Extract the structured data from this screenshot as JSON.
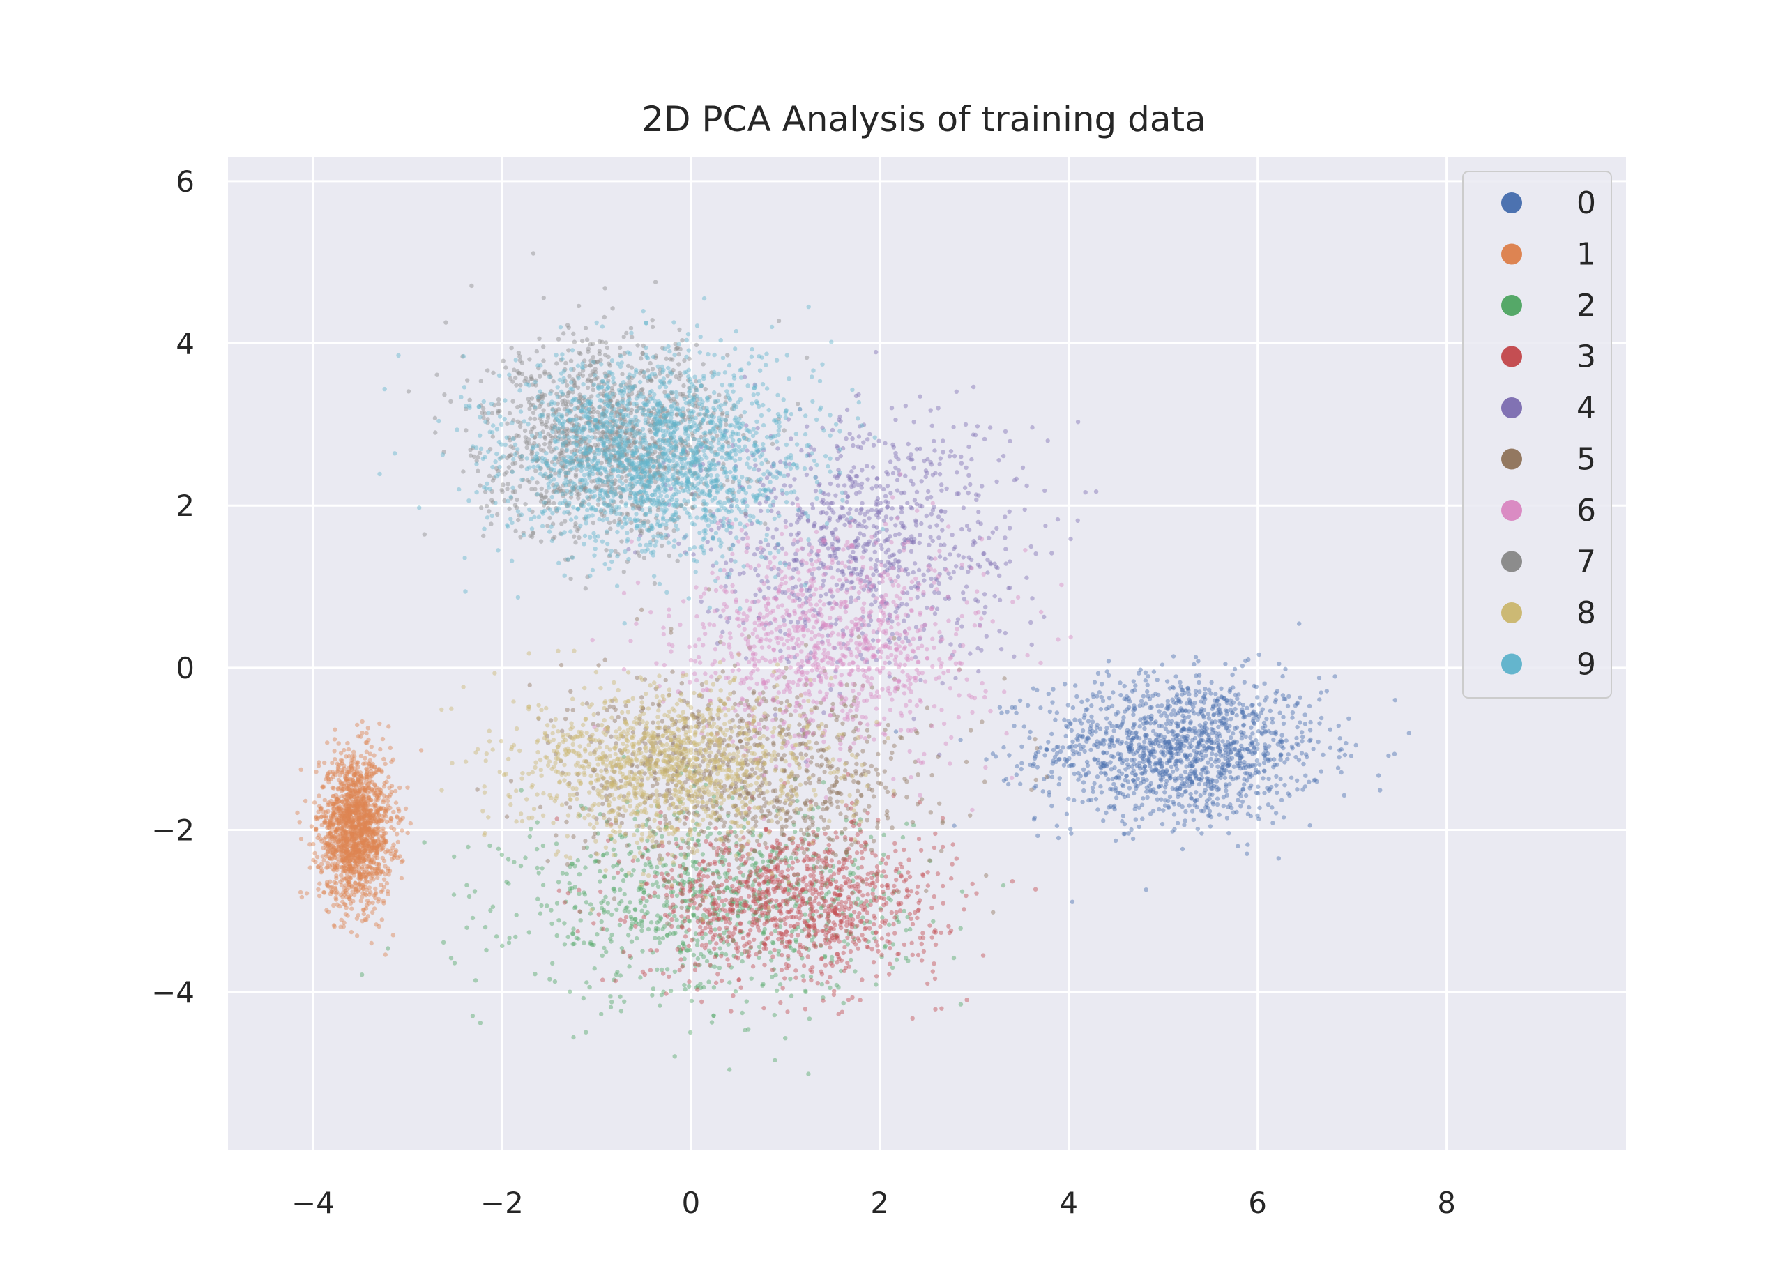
{
  "chart_data": {
    "type": "scatter",
    "title": "2D PCA Analysis of training data",
    "xlabel": "",
    "ylabel": "",
    "xlim": [
      -4.9,
      9.9
    ],
    "ylim": [
      -5.95,
      6.3
    ],
    "x_ticks": [
      -4,
      -2,
      0,
      2,
      4,
      6,
      8
    ],
    "x_tick_labels": [
      "−4",
      "−2",
      "0",
      "2",
      "4",
      "6",
      "8"
    ],
    "y_ticks": [
      -4,
      -2,
      0,
      2,
      4,
      6
    ],
    "y_tick_labels": [
      "−4",
      "−2",
      "0",
      "2",
      "4",
      "6"
    ],
    "grid": true,
    "background": "#eaeaf2",
    "legend_position": "top-right",
    "point_alpha": 0.45,
    "series": [
      {
        "name": "0",
        "color": "#4c72b0",
        "center": [
          5.2,
          -1.0
        ],
        "spread": [
          1.25,
          0.75
        ],
        "count": 1400
      },
      {
        "name": "1",
        "color": "#dd8452",
        "center": [
          -3.55,
          -2.0
        ],
        "spread": [
          0.32,
          0.75
        ],
        "count": 1600
      },
      {
        "name": "2",
        "color": "#55a868",
        "center": [
          0.2,
          -2.9
        ],
        "spread": [
          1.7,
          1.0
        ],
        "count": 900
      },
      {
        "name": "3",
        "color": "#c44e52",
        "center": [
          1.1,
          -2.9
        ],
        "spread": [
          1.3,
          0.8
        ],
        "count": 1100
      },
      {
        "name": "4",
        "color": "#8172b3",
        "center": [
          1.8,
          1.6
        ],
        "spread": [
          1.4,
          1.3
        ],
        "count": 900
      },
      {
        "name": "5",
        "color": "#937860",
        "center": [
          0.6,
          -1.3
        ],
        "spread": [
          1.6,
          1.0
        ],
        "count": 900
      },
      {
        "name": "6",
        "color": "#da8bc3",
        "center": [
          1.5,
          0.3
        ],
        "spread": [
          1.3,
          1.1
        ],
        "count": 1000
      },
      {
        "name": "7",
        "color": "#8c8c8c",
        "center": [
          -0.9,
          2.8
        ],
        "spread": [
          1.1,
          1.0
        ],
        "count": 1300
      },
      {
        "name": "8",
        "color": "#ccb974",
        "center": [
          -0.2,
          -1.2
        ],
        "spread": [
          1.3,
          0.8
        ],
        "count": 1300
      },
      {
        "name": "9",
        "color": "#64b5cd",
        "center": [
          -0.4,
          2.6
        ],
        "spread": [
          1.3,
          1.0
        ],
        "count": 2000
      }
    ]
  }
}
